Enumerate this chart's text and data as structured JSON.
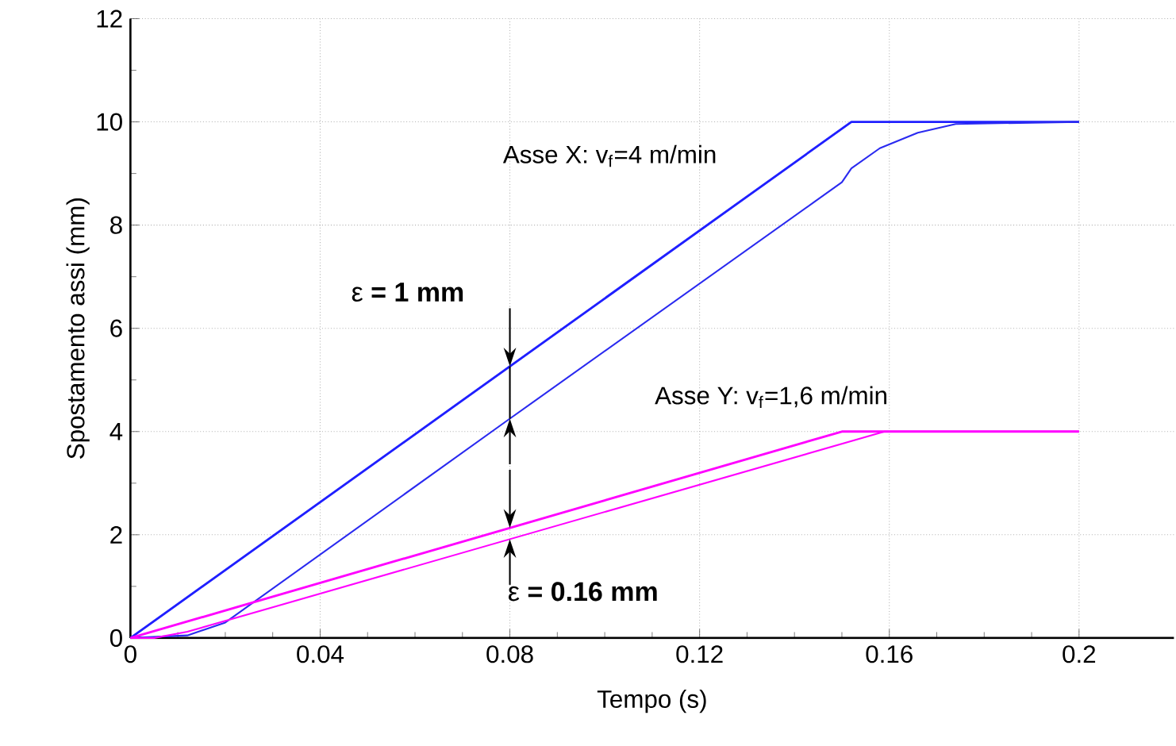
{
  "chart_data": {
    "type": "line",
    "xlabel": "Tempo (s)",
    "ylabel": "Spostamento assi (mm)",
    "xlim": [
      0,
      0.22
    ],
    "ylim": [
      0,
      12
    ],
    "xticks": [
      0,
      0.04,
      0.08,
      0.12,
      0.16,
      0.2
    ],
    "yticks": [
      0,
      2,
      4,
      6,
      8,
      10,
      12
    ],
    "grid": true,
    "line_style": "solid",
    "marker": "none",
    "series": [
      {
        "color": "#1f1fff",
        "x": [
          0,
          0.152,
          0.2
        ],
        "values": [
          0,
          10,
          10
        ]
      },
      {
        "color": "#2a2af0",
        "x": [
          0,
          0.012,
          0.02,
          0.08,
          0.15,
          0.152,
          0.158,
          0.166,
          0.174,
          0.2
        ],
        "values": [
          0,
          0.05,
          0.3,
          4.25,
          8.83,
          9.1,
          9.49,
          9.79,
          9.96,
          10
        ]
      },
      {
        "color": "#ff00ff",
        "x": [
          0,
          0.15,
          0.2
        ],
        "values": [
          0,
          4,
          4
        ]
      },
      {
        "color": "#ff00ff",
        "x": [
          0,
          0.005,
          0.012,
          0.159,
          0.2
        ],
        "values": [
          0,
          0,
          0.12,
          4,
          4
        ]
      }
    ],
    "annotations": [
      "Asse X: v$_{f}$=4 m/min",
      "Asse Y: v$_{f}$=1,6 m/min",
      {
        "text": "ε **= 1 mm**",
        "x": 0.08,
        "y": 5.26
      },
      {
        "text": "ε **= 0.16 mm**",
        "x": 0.08,
        "y": 2.13
      }
    ]
  }
}
